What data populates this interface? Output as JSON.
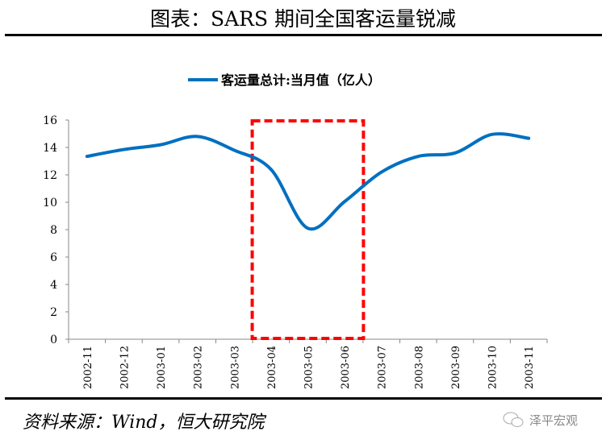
{
  "header": {
    "title": "图表：SARS 期间全国客运量锐减"
  },
  "footer": {
    "source": "资料来源：Wind，恒大研究院",
    "watermark": "泽平宏观",
    "watermark_icon": "wechat-icon"
  },
  "chart_data": {
    "type": "line",
    "title": "",
    "xlabel": "",
    "ylabel": "",
    "categories": [
      "2002-11",
      "2002-12",
      "2003-01",
      "2003-02",
      "2003-03",
      "2003-04",
      "2003-05",
      "2003-06",
      "2003-07",
      "2003-08",
      "2003-09",
      "2003-10",
      "2003-11"
    ],
    "series": [
      {
        "name": "客运量总计:当月值（亿人）",
        "color": "#0070C0",
        "values": [
          13.35,
          13.85,
          14.2,
          14.8,
          13.8,
          12.4,
          8.1,
          10.05,
          12.2,
          13.35,
          13.6,
          14.95,
          14.67
        ]
      }
    ],
    "ylim": [
      0,
      16
    ],
    "yticks": [
      0,
      2,
      4,
      6,
      8,
      10,
      12,
      14,
      16
    ],
    "grid": false,
    "legend": "top-center",
    "highlight": {
      "from": "2003-04",
      "to": "2003-06",
      "color": "#FF0000",
      "style": "dashed"
    }
  }
}
